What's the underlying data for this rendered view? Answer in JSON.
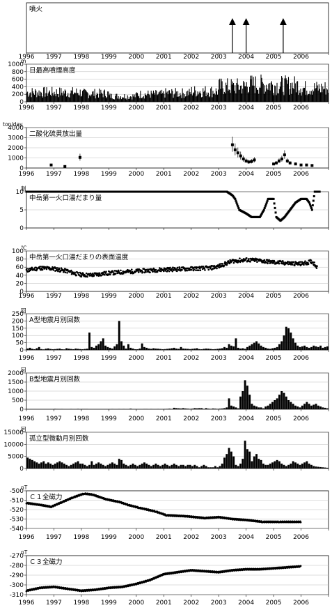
{
  "years": [
    "1996",
    "1997",
    "1998",
    "1999",
    "2000",
    "2001",
    "2002",
    "2003",
    "2004",
    "2005",
    "2006"
  ],
  "chart_data": [
    {
      "type": "event",
      "title": "噴火",
      "events": [
        2003.5,
        2004.0,
        2005.35
      ]
    },
    {
      "type": "bar",
      "title": "日最高噴煙高度",
      "unit": "m",
      "ylim": [
        0,
        1000
      ],
      "yticks": [
        "0",
        "200",
        "400",
        "600",
        "800",
        "1000"
      ],
      "level_by_year": [
        {
          "year": 1996,
          "height": 250
        },
        {
          "year": 1997,
          "height": 250
        },
        {
          "year": 1998,
          "height": 220
        },
        {
          "year": 1999,
          "height": 150
        },
        {
          "year": 2000,
          "height": 200
        },
        {
          "year": 2001,
          "height": 230
        },
        {
          "year": 2002,
          "height": 280
        },
        {
          "year": 2003,
          "height": 400
        },
        {
          "year": 2004,
          "height": 460
        },
        {
          "year": 2005,
          "height": 440
        },
        {
          "year": 2006,
          "height": 360
        }
      ]
    },
    {
      "type": "scatter",
      "title": "二酸化硫黄放出量",
      "unit": "ton/day",
      "ylim": [
        0,
        4000
      ],
      "yticks": [
        "0",
        "1000",
        "2000",
        "3000",
        "4000"
      ],
      "points": [
        {
          "x": 1996.9,
          "y": 300
        },
        {
          "x": 1997.4,
          "y": 150
        },
        {
          "x": 1997.95,
          "y": 1050
        },
        {
          "x": 2003.5,
          "y": 2300
        },
        {
          "x": 2003.6,
          "y": 1800
        },
        {
          "x": 2003.7,
          "y": 1500
        },
        {
          "x": 2003.8,
          "y": 1200
        },
        {
          "x": 2003.9,
          "y": 900
        },
        {
          "x": 2004.0,
          "y": 700
        },
        {
          "x": 2004.1,
          "y": 600
        },
        {
          "x": 2004.2,
          "y": 650
        },
        {
          "x": 2004.3,
          "y": 800
        },
        {
          "x": 2005.0,
          "y": 400
        },
        {
          "x": 2005.1,
          "y": 500
        },
        {
          "x": 2005.2,
          "y": 700
        },
        {
          "x": 2005.3,
          "y": 900
        },
        {
          "x": 2005.4,
          "y": 1300
        },
        {
          "x": 2005.5,
          "y": 700
        },
        {
          "x": 2005.6,
          "y": 500
        },
        {
          "x": 2005.8,
          "y": 400
        },
        {
          "x": 2006.0,
          "y": 300
        },
        {
          "x": 2006.2,
          "y": 300
        },
        {
          "x": 2006.4,
          "y": 250
        }
      ]
    },
    {
      "type": "line",
      "title": "中岳第一火口湯だまり量",
      "unit": "割",
      "ylim": [
        0,
        10
      ],
      "yticks": [
        "0",
        "5",
        "10"
      ],
      "points": [
        {
          "x": 1996.0,
          "y": 10
        },
        {
          "x": 2003.3,
          "y": 10
        },
        {
          "x": 2003.5,
          "y": 9
        },
        {
          "x": 2003.6,
          "y": 8
        },
        {
          "x": 2003.75,
          "y": 5
        },
        {
          "x": 2004.0,
          "y": 4
        },
        {
          "x": 2004.2,
          "y": 3
        },
        {
          "x": 2004.5,
          "y": 3
        },
        {
          "x": 2004.65,
          "y": 5
        },
        {
          "x": 2004.8,
          "y": 8
        },
        {
          "x": 2005.0,
          "y": 8
        },
        {
          "x": 2005.1,
          "y": 3
        },
        {
          "x": 2005.25,
          "y": 2
        },
        {
          "x": 2005.4,
          "y": 3
        },
        {
          "x": 2005.6,
          "y": 5
        },
        {
          "x": 2005.8,
          "y": 7
        },
        {
          "x": 2006.0,
          "y": 8
        },
        {
          "x": 2006.2,
          "y": 8
        },
        {
          "x": 2006.3,
          "y": 7
        },
        {
          "x": 2006.4,
          "y": 5
        },
        {
          "x": 2006.5,
          "y": 10
        },
        {
          "x": 2006.7,
          "y": 10
        }
      ]
    },
    {
      "type": "scatter",
      "title": "中岳第一火口湯だまりの表面温度",
      "unit": "℃",
      "ylim": [
        0,
        100
      ],
      "yticks": [
        "0",
        "20",
        "40",
        "60",
        "80",
        "100"
      ],
      "trend": [
        {
          "x": 1996.0,
          "y": 52
        },
        {
          "x": 1996.5,
          "y": 58
        },
        {
          "x": 1997.0,
          "y": 56
        },
        {
          "x": 1997.5,
          "y": 50
        },
        {
          "x": 1997.9,
          "y": 42
        },
        {
          "x": 1998.3,
          "y": 40
        },
        {
          "x": 1998.8,
          "y": 44
        },
        {
          "x": 1999.5,
          "y": 48
        },
        {
          "x": 2000.0,
          "y": 50
        },
        {
          "x": 2000.5,
          "y": 52
        },
        {
          "x": 2001.0,
          "y": 54
        },
        {
          "x": 2002.0,
          "y": 56
        },
        {
          "x": 2002.7,
          "y": 58
        },
        {
          "x": 2003.0,
          "y": 62
        },
        {
          "x": 2003.5,
          "y": 75
        },
        {
          "x": 2004.0,
          "y": 78
        },
        {
          "x": 2004.5,
          "y": 76
        },
        {
          "x": 2005.0,
          "y": 72
        },
        {
          "x": 2005.5,
          "y": 70
        },
        {
          "x": 2006.0,
          "y": 68
        },
        {
          "x": 2006.4,
          "y": 74
        },
        {
          "x": 2006.6,
          "y": 60
        }
      ]
    },
    {
      "type": "bar",
      "title": "A型地震月別回数",
      "unit": "回",
      "ylim": [
        0,
        250
      ],
      "yticks": [
        "0",
        "50",
        "100",
        "150",
        "200",
        "250"
      ],
      "monthly": [
        10,
        15,
        8,
        5,
        12,
        20,
        6,
        4,
        9,
        11,
        7,
        5,
        6,
        8,
        10,
        5,
        4,
        12,
        9,
        7,
        5,
        10,
        8,
        6,
        5,
        7,
        9,
        120,
        20,
        15,
        30,
        40,
        60,
        80,
        30,
        20,
        15,
        10,
        25,
        40,
        200,
        60,
        30,
        10,
        40,
        15,
        10,
        5,
        5,
        10,
        45,
        20,
        15,
        10,
        8,
        12,
        10,
        9,
        7,
        5,
        6,
        8,
        10,
        12,
        15,
        10,
        8,
        20,
        10,
        9,
        8,
        6,
        8,
        10,
        12,
        6,
        5,
        8,
        10,
        9,
        7,
        5,
        6,
        8,
        10,
        12,
        20,
        15,
        40,
        30,
        25,
        80,
        15,
        10,
        12,
        8,
        20,
        30,
        40,
        50,
        60,
        45,
        30,
        20,
        15,
        10,
        8,
        12,
        15,
        20,
        40,
        60,
        100,
        160,
        150,
        120,
        80,
        50,
        30,
        20,
        25,
        30,
        20,
        15,
        20,
        30,
        25,
        20,
        30,
        15,
        20,
        25
      ]
    },
    {
      "type": "bar",
      "title": "B型地震月別回数",
      "unit": "回",
      "ylim": [
        0,
        2000
      ],
      "yticks": [
        "0",
        "500",
        "1000",
        "1500",
        "2000"
      ],
      "monthly": [
        0,
        0,
        0,
        0,
        0,
        0,
        0,
        0,
        0,
        0,
        0,
        0,
        20,
        10,
        5,
        10,
        0,
        0,
        0,
        10,
        0,
        0,
        20,
        0,
        10,
        10,
        10,
        0,
        0,
        0,
        0,
        0,
        0,
        0,
        0,
        0,
        0,
        10,
        0,
        0,
        10,
        0,
        10,
        0,
        0,
        30,
        0,
        0,
        0,
        0,
        0,
        10,
        10,
        0,
        10,
        0,
        0,
        10,
        0,
        0,
        10,
        20,
        30,
        10,
        80,
        60,
        50,
        40,
        60,
        40,
        30,
        20,
        30,
        60,
        50,
        60,
        60,
        20,
        60,
        30,
        20,
        40,
        30,
        20,
        30,
        40,
        60,
        100,
        600,
        200,
        150,
        100,
        50,
        700,
        1000,
        1600,
        1300,
        800,
        300,
        200,
        150,
        100,
        100,
        50,
        150,
        200,
        300,
        400,
        500,
        600,
        800,
        1000,
        900,
        700,
        500,
        400,
        300,
        200,
        150,
        100,
        200,
        300,
        400,
        300,
        200,
        250,
        300,
        200,
        150,
        100,
        80,
        50
      ]
    },
    {
      "type": "bar",
      "title": "孤立型微動月別回数",
      "unit": "回",
      "ylim": [
        0,
        15000
      ],
      "yticks": [
        "0",
        "5000",
        "10000",
        "15000"
      ],
      "monthly": [
        4500,
        4000,
        3500,
        3000,
        2500,
        2000,
        2500,
        3000,
        2000,
        2500,
        2000,
        1500,
        2000,
        2500,
        3000,
        2500,
        2000,
        1500,
        1000,
        1500,
        2000,
        2500,
        3000,
        2000,
        2000,
        1500,
        1000,
        1500,
        3000,
        1500,
        2000,
        2500,
        2000,
        1500,
        1000,
        1500,
        2000,
        2500,
        2000,
        1500,
        4000,
        3500,
        2000,
        1500,
        1000,
        1500,
        2000,
        1500,
        1000,
        1500,
        2000,
        2500,
        2000,
        1500,
        1000,
        1500,
        2000,
        1500,
        1000,
        1500,
        2000,
        1500,
        1000,
        1500,
        2000,
        1500,
        1000,
        1500,
        1500,
        1000,
        1500,
        1500,
        1000,
        1500,
        1000,
        500,
        1000,
        1500,
        1000,
        500,
        500,
        500,
        1000,
        500,
        1000,
        2000,
        4500,
        6000,
        8500,
        7000,
        5000,
        1500,
        1000,
        2000,
        4000,
        11500,
        8000,
        7000,
        3000,
        5000,
        6000,
        4000,
        3500,
        2000,
        1500,
        1500,
        2000,
        2500,
        3000,
        3500,
        3000,
        2000,
        1500,
        1000,
        1500,
        2000,
        3000,
        2500,
        2000,
        1500,
        2000,
        2500,
        3000,
        2000,
        1500,
        1000,
        800,
        700,
        600,
        500,
        400,
        300
      ]
    },
    {
      "type": "line",
      "title": "Ｃ１全磁力",
      "unit": "nT",
      "ylim": [
        -540,
        -500
      ],
      "yticks": [
        "-500",
        "-510",
        "-520",
        "-530",
        "-540"
      ],
      "points": [
        {
          "x": 1996.0,
          "y": -513
        },
        {
          "x": 1996.5,
          "y": -515
        },
        {
          "x": 1996.9,
          "y": -517
        },
        {
          "x": 1997.3,
          "y": -512
        },
        {
          "x": 1997.7,
          "y": -507
        },
        {
          "x": 1998.1,
          "y": -503
        },
        {
          "x": 1998.4,
          "y": -504
        },
        {
          "x": 1998.9,
          "y": -509
        },
        {
          "x": 1999.4,
          "y": -512
        },
        {
          "x": 1999.7,
          "y": -515
        },
        {
          "x": 2000.1,
          "y": -518
        },
        {
          "x": 2000.7,
          "y": -522
        },
        {
          "x": 2001.1,
          "y": -526
        },
        {
          "x": 2001.8,
          "y": -527
        },
        {
          "x": 2002.5,
          "y": -529
        },
        {
          "x": 2003.0,
          "y": -528
        },
        {
          "x": 2003.5,
          "y": -530
        },
        {
          "x": 2004.0,
          "y": -531
        },
        {
          "x": 2004.6,
          "y": -533
        },
        {
          "x": 2005.2,
          "y": -533
        },
        {
          "x": 2006.0,
          "y": -533
        }
      ]
    },
    {
      "type": "line",
      "title": "Ｃ３全磁力",
      "unit": "nT",
      "ylim": [
        -310,
        -270
      ],
      "yticks": [
        "-270",
        "-280",
        "-290",
        "-300",
        "-310"
      ],
      "points": [
        {
          "x": 1996.0,
          "y": -306
        },
        {
          "x": 1996.5,
          "y": -303
        },
        {
          "x": 1997.0,
          "y": -302
        },
        {
          "x": 1997.5,
          "y": -304
        },
        {
          "x": 1998.0,
          "y": -306
        },
        {
          "x": 1998.5,
          "y": -305
        },
        {
          "x": 1999.0,
          "y": -303
        },
        {
          "x": 1999.5,
          "y": -302
        },
        {
          "x": 2000.0,
          "y": -299
        },
        {
          "x": 2000.5,
          "y": -295
        },
        {
          "x": 2001.0,
          "y": -289
        },
        {
          "x": 2001.5,
          "y": -287
        },
        {
          "x": 2002.0,
          "y": -285
        },
        {
          "x": 2002.5,
          "y": -286
        },
        {
          "x": 2003.0,
          "y": -287
        },
        {
          "x": 2003.5,
          "y": -285
        },
        {
          "x": 2004.0,
          "y": -284
        },
        {
          "x": 2004.5,
          "y": -284
        },
        {
          "x": 2005.0,
          "y": -283
        },
        {
          "x": 2005.5,
          "y": -282
        },
        {
          "x": 2006.0,
          "y": -281
        }
      ]
    }
  ]
}
